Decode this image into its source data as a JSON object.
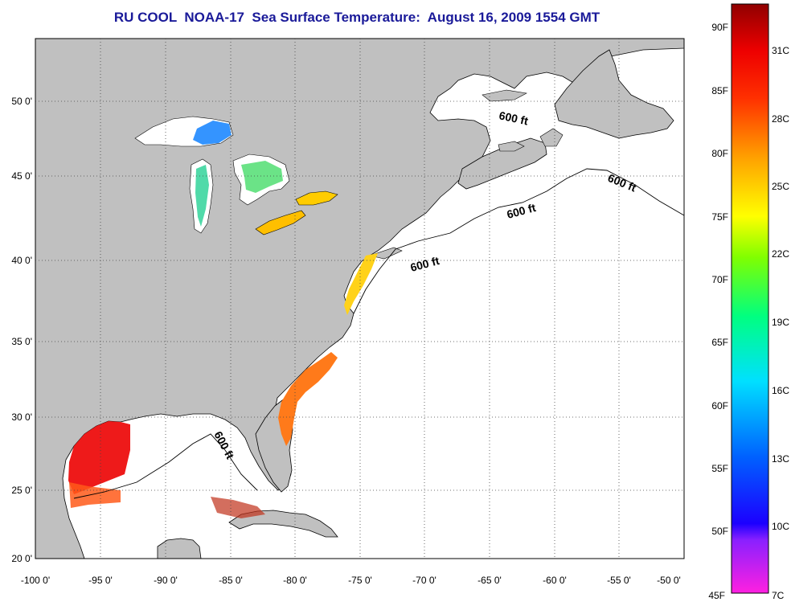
{
  "title": "RU COOL  NOAA-17  Sea Surface Temperature:  August 16, 2009 1554 GMT",
  "map": {
    "x_ticks": [
      "-100 0'",
      "-95 0'",
      "-90 0'",
      "-85 0'",
      "-80 0'",
      "-75 0'",
      "-70 0'",
      "-65 0'",
      "-60 0'",
      "-55 0'",
      "-50 0'"
    ],
    "y_ticks": [
      "50 0'",
      "45 0'",
      "40 0'",
      "35 0'",
      "30 0'",
      "25 0'",
      "20 0'"
    ],
    "depth_contour_labels": [
      "600 ft",
      "600 ft",
      "600 ft",
      "600 ft",
      "600 ft"
    ],
    "land_color": "#c0c0c0",
    "ocean_color": "#ffffff"
  },
  "colorbar": {
    "fahrenheit_labels": [
      "90F",
      "85F",
      "80F",
      "75F",
      "70F",
      "65F",
      "60F",
      "55F",
      "50F",
      "45F"
    ],
    "celsius_labels": [
      "31C",
      "28C",
      "25C",
      "22C",
      "19C",
      "16C",
      "13C",
      "10C",
      "7C"
    ]
  }
}
